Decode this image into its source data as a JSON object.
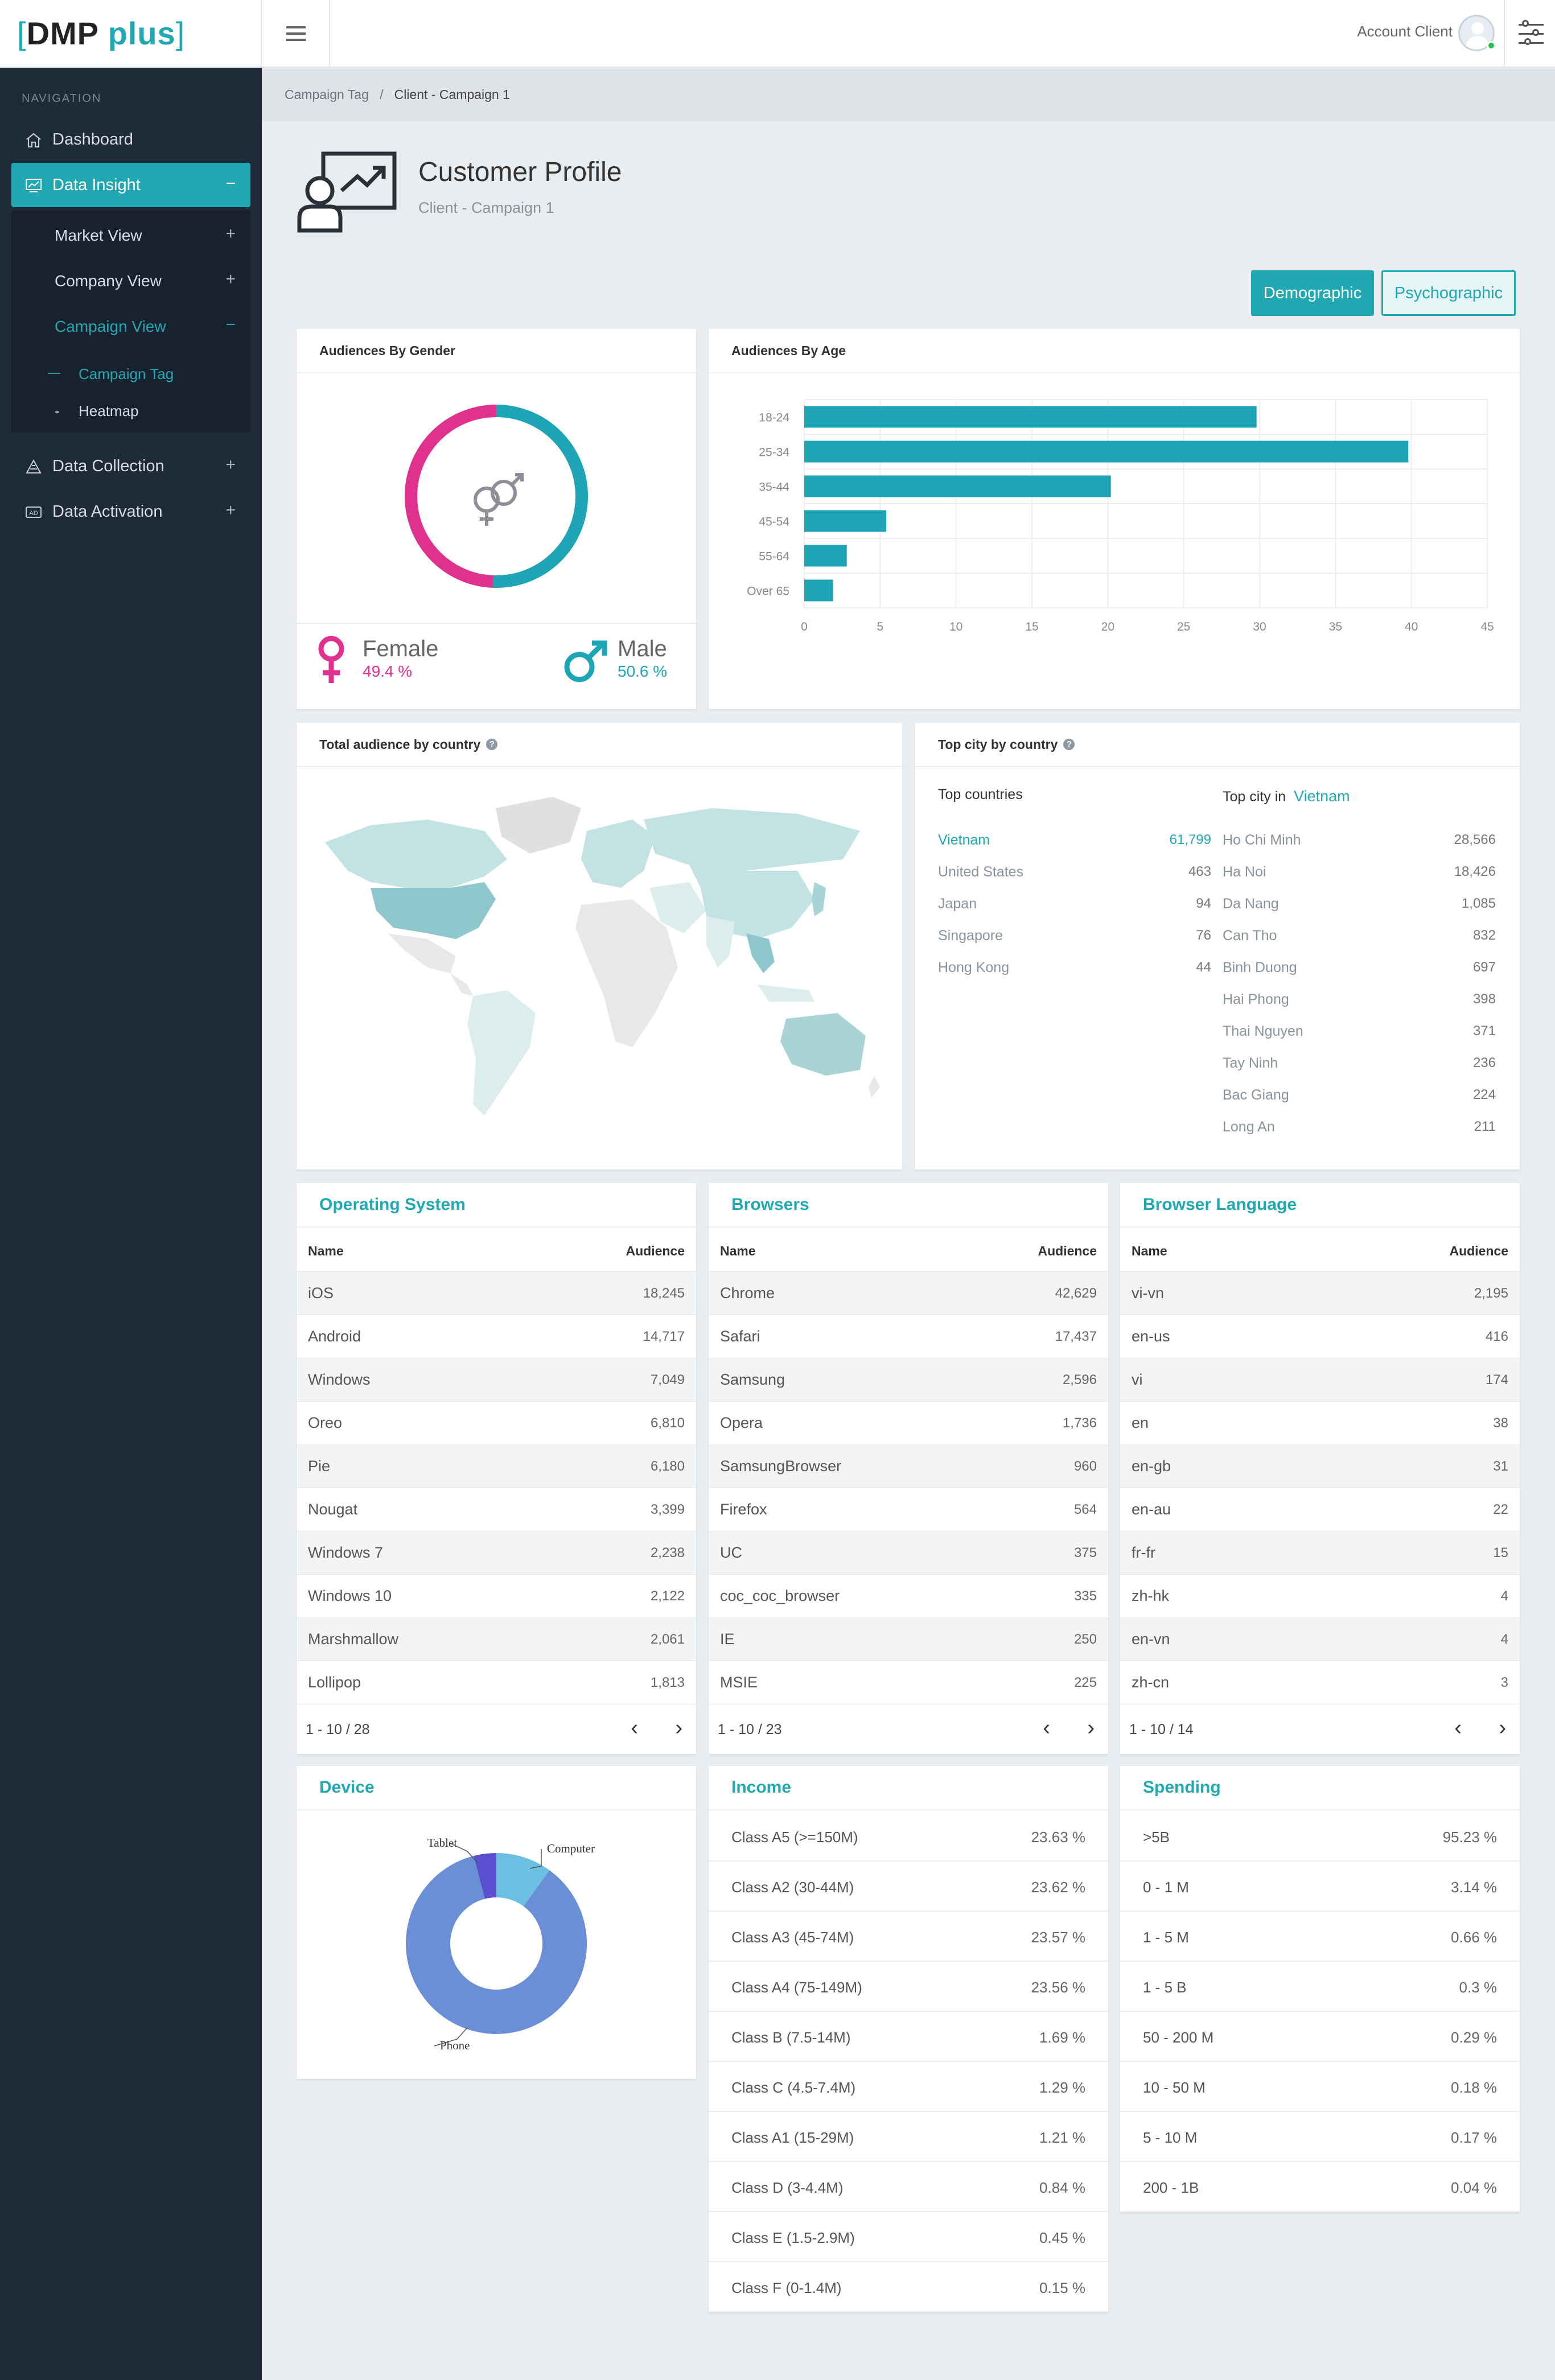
{
  "app": {
    "logo_open": "[",
    "logo_main": "DMP",
    "logo_plus": "plus",
    "logo_close": "]"
  },
  "topbar": {
    "account_label": "Account Client"
  },
  "sidebar": {
    "nav_label": "NAVIGATION",
    "items": [
      {
        "label": "Dashboard",
        "icon": "home-icon",
        "expander": ""
      },
      {
        "label": "Data Insight",
        "icon": "chart-icon",
        "expander": "−"
      },
      {
        "label": "Data Collection",
        "icon": "collection-icon",
        "expander": "+"
      },
      {
        "label": "Data Activation",
        "icon": "ad-icon",
        "expander": "+"
      }
    ],
    "sub_items": [
      {
        "label": "Market View",
        "expander": "+"
      },
      {
        "label": "Company View",
        "expander": "+"
      },
      {
        "label": "Campaign View",
        "expander": "−"
      }
    ],
    "sub_sub_items": [
      {
        "prefix": "—",
        "label": "Campaign Tag"
      },
      {
        "prefix": "-",
        "label": "Heatmap"
      }
    ]
  },
  "breadcrumb": {
    "parent": "Campaign Tag",
    "separator": "/",
    "current": "Client - Campaign 1"
  },
  "header": {
    "title": "Customer Profile",
    "subtitle": "Client - Campaign 1"
  },
  "tabs": {
    "demographic": "Demographic",
    "psychographic": "Psychographic"
  },
  "gender": {
    "title": "Audiences By Gender",
    "female_label": "Female",
    "female_pct": "49.4 %",
    "female_value": 49.4,
    "male_label": "Male",
    "male_pct": "50.6 %",
    "male_value": 50.6,
    "female_color": "#e0318f",
    "male_color": "#1ea5b5"
  },
  "chart_data": {
    "type": "bar",
    "orientation": "horizontal",
    "title": "Audiences By Age",
    "categories": [
      "18-24",
      "25-34",
      "35-44",
      "45-54",
      "55-64",
      "Over 65"
    ],
    "values": [
      29.8,
      39.8,
      20.2,
      5.4,
      2.8,
      1.9
    ],
    "xlim": [
      0,
      45
    ],
    "xticks": [
      0,
      5,
      10,
      15,
      20,
      25,
      30,
      35,
      40,
      45
    ],
    "grid": true,
    "bar_color": "#1ea5b5"
  },
  "map": {
    "title": "Total audience by country",
    "help": "?"
  },
  "top_city": {
    "title": "Top city by country",
    "help": "?",
    "countries_label": "Top countries",
    "city_label": "Top city in",
    "selected_country": "Vietnam",
    "countries": [
      {
        "name": "Vietnam",
        "value": "61,799"
      },
      {
        "name": "United States",
        "value": "463"
      },
      {
        "name": "Japan",
        "value": "94"
      },
      {
        "name": "Singapore",
        "value": "76"
      },
      {
        "name": "Hong Kong",
        "value": "44"
      }
    ],
    "cities": [
      {
        "name": "Ho Chi Minh",
        "value": "28,566"
      },
      {
        "name": "Ha Noi",
        "value": "18,426"
      },
      {
        "name": "Da Nang",
        "value": "1,085"
      },
      {
        "name": "Can Tho",
        "value": "832"
      },
      {
        "name": "Binh Duong",
        "value": "697"
      },
      {
        "name": "Hai Phong",
        "value": "398"
      },
      {
        "name": "Thai Nguyen",
        "value": "371"
      },
      {
        "name": "Tay Ninh",
        "value": "236"
      },
      {
        "name": "Bac Giang",
        "value": "224"
      },
      {
        "name": "Long An",
        "value": "211"
      }
    ]
  },
  "tables": [
    {
      "title": "Operating System",
      "col_name": "Name",
      "col_aud": "Audience",
      "pager": "1 - 10 / 28",
      "rows": [
        [
          "iOS",
          "18,245"
        ],
        [
          "Android",
          "14,717"
        ],
        [
          "Windows",
          "7,049"
        ],
        [
          "Oreo",
          "6,810"
        ],
        [
          "Pie",
          "6,180"
        ],
        [
          "Nougat",
          "3,399"
        ],
        [
          "Windows 7",
          "2,238"
        ],
        [
          "Windows 10",
          "2,122"
        ],
        [
          "Marshmallow",
          "2,061"
        ],
        [
          "Lollipop",
          "1,813"
        ]
      ]
    },
    {
      "title": "Browsers",
      "col_name": "Name",
      "col_aud": "Audience",
      "pager": "1 - 10 / 23",
      "rows": [
        [
          "Chrome",
          "42,629"
        ],
        [
          "Safari",
          "17,437"
        ],
        [
          "Samsung",
          "2,596"
        ],
        [
          "Opera",
          "1,736"
        ],
        [
          "SamsungBrowser",
          "960"
        ],
        [
          "Firefox",
          "564"
        ],
        [
          "UC",
          "375"
        ],
        [
          "coc_coc_browser",
          "335"
        ],
        [
          "IE",
          "250"
        ],
        [
          "MSIE",
          "225"
        ]
      ]
    },
    {
      "title": "Browser Language",
      "col_name": "Name",
      "col_aud": "Audience",
      "pager": "1 - 10 / 14",
      "rows": [
        [
          "vi-vn",
          "2,195"
        ],
        [
          "en-us",
          "416"
        ],
        [
          "vi",
          "174"
        ],
        [
          "en",
          "38"
        ],
        [
          "en-gb",
          "31"
        ],
        [
          "en-au",
          "22"
        ],
        [
          "fr-fr",
          "15"
        ],
        [
          "zh-hk",
          "4"
        ],
        [
          "en-vn",
          "4"
        ],
        [
          "zh-cn",
          "3"
        ]
      ]
    }
  ],
  "pager_icons": {
    "prev": "‹",
    "next": "›"
  },
  "device": {
    "title": "Device",
    "slices": [
      {
        "label": "Phone",
        "value": 86,
        "color": "#6a8fd6"
      },
      {
        "label": "Computer",
        "value": 10,
        "color": "#6bbfe0"
      },
      {
        "label": "Tablet",
        "value": 4,
        "color": "#5b4fd0"
      }
    ]
  },
  "income": {
    "title": "Income",
    "rows": [
      [
        "Class A5 (>=150M)",
        "23.63 %"
      ],
      [
        "Class A2 (30-44M)",
        "23.62 %"
      ],
      [
        "Class A3 (45-74M)",
        "23.57 %"
      ],
      [
        "Class A4 (75-149M)",
        "23.56 %"
      ],
      [
        "Class B (7.5-14M)",
        "1.69 %"
      ],
      [
        "Class C (4.5-7.4M)",
        "1.29 %"
      ],
      [
        "Class A1 (15-29M)",
        "1.21 %"
      ],
      [
        "Class D (3-4.4M)",
        "0.84 %"
      ],
      [
        "Class E (1.5-2.9M)",
        "0.45 %"
      ],
      [
        "Class F (0-1.4M)",
        "0.15 %"
      ]
    ]
  },
  "spending": {
    "title": "Spending",
    "rows": [
      [
        ">5B",
        "95.23 %"
      ],
      [
        "0 - 1 M",
        "3.14 %"
      ],
      [
        "1 - 5 M",
        "0.66 %"
      ],
      [
        "1 - 5 B",
        "0.3 %"
      ],
      [
        "50 - 200 M",
        "0.29 %"
      ],
      [
        "10 - 50 M",
        "0.18 %"
      ],
      [
        "5 - 10 M",
        "0.17 %"
      ],
      [
        "200 - 1B",
        "0.04 %"
      ]
    ]
  }
}
